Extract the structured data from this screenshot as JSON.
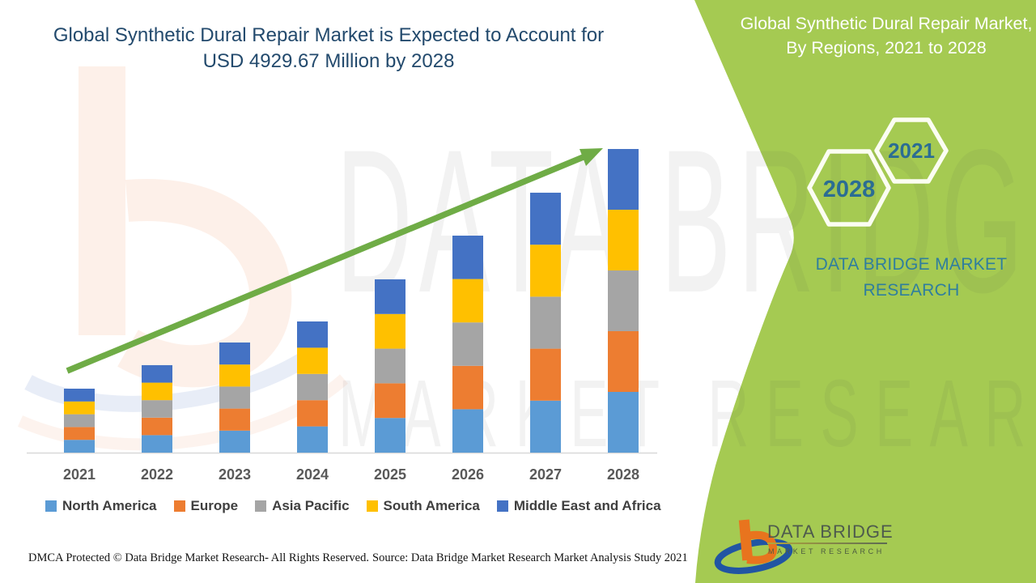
{
  "header": {
    "title_line1": "Global Synthetic Dural Repair Market is Expected to Account for",
    "title_line2": "USD 4929.67 Million by 2028",
    "title_color": "#234A6D"
  },
  "side_panel": {
    "bg_color": "#A5CA52",
    "edge_color": "#FBFDF2",
    "title": "Global Synthetic Dural Repair Market, By Regions, 2021 to 2028",
    "hexagons": [
      {
        "label": "2028"
      },
      {
        "label": "2021"
      }
    ],
    "hex_text_color": "#2B6D93",
    "brand_text": "DATA BRIDGE MARKET RESEARCH",
    "brand_color": "#2F7E9E",
    "logo": {
      "line1": "DATA BRIDGE",
      "line2": "MARKET RESEARCH",
      "b_color": "#E8741E",
      "swoosh_color": "#2155A3"
    }
  },
  "watermark": {
    "row1": "DATA BRIDGE",
    "row2": "MARKET RESEARCH"
  },
  "chart_data": {
    "type": "bar",
    "stacked": true,
    "title": "Global Synthetic Dural Repair Market is Expected to Account for USD 4929.67 Million by 2028",
    "categories": [
      "2021",
      "2022",
      "2023",
      "2024",
      "2025",
      "2026",
      "2027",
      "2028"
    ],
    "series": [
      {
        "name": "North America",
        "color": "#5B9BD5",
        "values": [
          207.7,
          284.0,
          357.6,
          425.9,
          562.7,
          704.6,
          844.0,
          985.9
        ]
      },
      {
        "name": "Europe",
        "color": "#ED7D31",
        "values": [
          207.7,
          284.0,
          357.6,
          425.9,
          562.7,
          704.6,
          844.0,
          985.9
        ]
      },
      {
        "name": "Asia Pacific",
        "color": "#A5A5A5",
        "values": [
          207.7,
          284.0,
          357.6,
          425.9,
          562.7,
          704.6,
          844.0,
          985.9
        ]
      },
      {
        "name": "South America",
        "color": "#FFC000",
        "values": [
          207.7,
          284.0,
          357.6,
          425.9,
          562.7,
          704.6,
          844.0,
          985.93
        ]
      },
      {
        "name": "Middle East and Africa",
        "color": "#4472C4",
        "values": [
          207.7,
          284.0,
          357.6,
          425.9,
          562.7,
          704.6,
          844.0,
          985.93
        ]
      }
    ],
    "totals_estimated": [
      1038.5,
      1420.0,
      1788.0,
      2129.5,
      2813.5,
      3523.0,
      4220.0,
      4929.67
    ],
    "final_value_label": "USD 4929.67 Million by 2028",
    "xlabel": "",
    "ylabel": "",
    "ylim": [
      0,
      4929.67
    ],
    "gridlines": false,
    "y_axis_visible": false,
    "legend_position": "bottom",
    "trend_arrow": true,
    "arrow_color": "#6FAC46",
    "axis_line_color": "#D8D8D8",
    "tick_label_color": "#595959"
  },
  "footer": {
    "left": "DMCA Protected © Data Bridge Market Research- All Rights Reserved.",
    "right": "Source: Data Bridge Market Research Market Analysis Study 2021"
  }
}
